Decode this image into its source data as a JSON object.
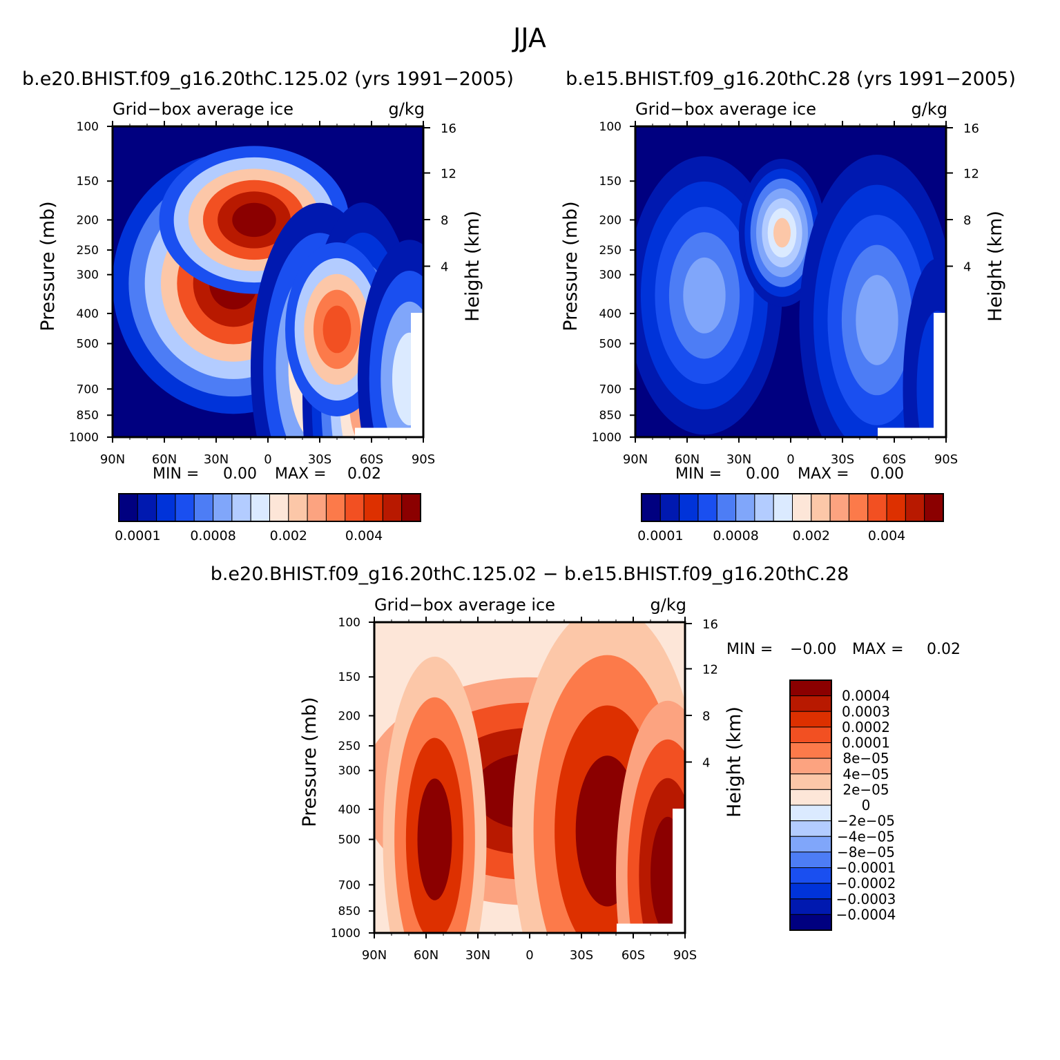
{
  "page": {
    "title": "JJA"
  },
  "colors": {
    "fill_scale": [
      "#000080",
      "#0019b0",
      "#0033d9",
      "#1a4ff0",
      "#4d7df5",
      "#80a6fa",
      "#b3ccff",
      "#dbeaff",
      "#fde6d8",
      "#fcc7a8",
      "#fca380",
      "#fc7a4a",
      "#f25022",
      "#dd3000",
      "#b81900",
      "#8b0000"
    ]
  },
  "chart_data": [
    {
      "id": "panel1",
      "type": "heatmap",
      "title": "b.e20.BHIST.f09_g16.20thC.125.02 (yrs 1991−2005)",
      "variable": "Grid−box average ice",
      "units": "g/kg",
      "ylabel": "Pressure (mb)",
      "y2label": "Height (km)",
      "xticks": [
        "90N",
        "60N",
        "30N",
        "0",
        "30S",
        "60S",
        "90S"
      ],
      "yticks": [
        "100",
        "150",
        "200",
        "250",
        "300",
        "400",
        "500",
        "700",
        "850",
        "1000"
      ],
      "y2ticks": [
        "16",
        "12",
        "8",
        "4"
      ],
      "min_label": "MIN =",
      "min_value": "0.00",
      "max_label": "MAX =",
      "max_value": "0.02",
      "colorbar_labels": [
        "0.0001",
        "0.0008",
        "0.002",
        "0.004"
      ],
      "blobs": [
        {
          "x": 20,
          "p": 320,
          "w": 70,
          "h": 300,
          "levels": [
            2,
            4,
            6,
            9,
            12,
            14,
            15
          ]
        },
        {
          "x": 8,
          "p": 200,
          "w": 55,
          "h": 170,
          "levels": [
            3,
            6,
            9,
            12,
            14,
            15
          ]
        },
        {
          "x": -30,
          "p": 600,
          "w": 40,
          "h": 380,
          "levels": [
            1,
            3,
            5,
            8,
            11
          ]
        },
        {
          "x": -55,
          "p": 750,
          "w": 35,
          "h": 450,
          "levels": [
            1,
            2,
            4,
            6,
            8,
            10
          ]
        },
        {
          "x": -40,
          "p": 450,
          "w": 30,
          "h": 200,
          "levels": [
            3,
            6,
            9,
            11,
            12
          ]
        },
        {
          "x": -82,
          "p": 650,
          "w": 30,
          "h": 320,
          "levels": [
            1,
            3,
            5,
            7
          ]
        }
      ]
    },
    {
      "id": "panel2",
      "type": "heatmap",
      "title": "b.e15.BHIST.f09_g16.20thC.28 (yrs 1991−2005)",
      "variable": "Grid−box average ice",
      "units": "g/kg",
      "ylabel": "Pressure (mb)",
      "y2label": "Height (km)",
      "xticks": [
        "90N",
        "60N",
        "30N",
        "0",
        "30S",
        "60S",
        "90S"
      ],
      "yticks": [
        "100",
        "150",
        "200",
        "250",
        "300",
        "400",
        "500",
        "700",
        "850",
        "1000"
      ],
      "y2ticks": [
        "16",
        "12",
        "8",
        "4"
      ],
      "min_label": "MIN =",
      "min_value": "0.00",
      "max_label": "MAX =",
      "max_value": "0.00",
      "colorbar_labels": [
        "0.0001",
        "0.0008",
        "0.002",
        "0.004"
      ],
      "blobs": [
        {
          "x": 50,
          "p": 350,
          "w": 45,
          "h": 320,
          "levels": [
            1,
            2,
            3,
            4,
            5
          ]
        },
        {
          "x": 5,
          "p": 220,
          "w": 25,
          "h": 170,
          "levels": [
            1,
            2,
            4,
            5,
            6,
            7,
            9
          ]
        },
        {
          "x": -50,
          "p": 420,
          "w": 45,
          "h": 380,
          "levels": [
            1,
            2,
            3,
            4,
            5
          ]
        },
        {
          "x": -85,
          "p": 700,
          "w": 20,
          "h": 300,
          "levels": [
            1,
            2
          ]
        }
      ]
    },
    {
      "id": "panel3",
      "type": "heatmap",
      "title": "b.e20.BHIST.f09_g16.20thC.125.02 − b.e15.BHIST.f09_g16.20thC.28",
      "variable": "Grid−box average ice",
      "units": "g/kg",
      "ylabel": "Pressure (mb)",
      "y2label": "Height (km)",
      "xticks": [
        "90N",
        "60N",
        "30N",
        "0",
        "30S",
        "60S",
        "90S"
      ],
      "yticks": [
        "100",
        "150",
        "200",
        "250",
        "300",
        "400",
        "500",
        "700",
        "850",
        "1000"
      ],
      "y2ticks": [
        "16",
        "12",
        "8",
        "4"
      ],
      "min_label": "MIN =",
      "min_value": "−0.00",
      "max_label": "MAX =",
      "max_value": "0.02",
      "colorbar_labels": [
        "0.0004",
        "0.0003",
        "0.0002",
        "0.0001",
        "8e−05",
        "4e−05",
        "2e−05",
        "0",
        "−2e−05",
        "−4e−05",
        "−8e−05",
        "−0.0001",
        "−0.0002",
        "−0.0003",
        "−0.0004"
      ],
      "blobs": [
        {
          "x": 0,
          "p": 350,
          "w": 120,
          "h": 320,
          "levels": [
            8,
            10,
            12,
            14,
            15
          ]
        },
        {
          "x": 55,
          "p": 500,
          "w": 30,
          "h": 420,
          "levels": [
            9,
            11,
            13,
            15
          ]
        },
        {
          "x": -45,
          "p": 470,
          "w": 55,
          "h": 520,
          "levels": [
            9,
            11,
            13,
            15
          ]
        },
        {
          "x": -80,
          "p": 650,
          "w": 30,
          "h": 400,
          "levels": [
            10,
            12,
            14,
            15
          ]
        }
      ]
    }
  ]
}
